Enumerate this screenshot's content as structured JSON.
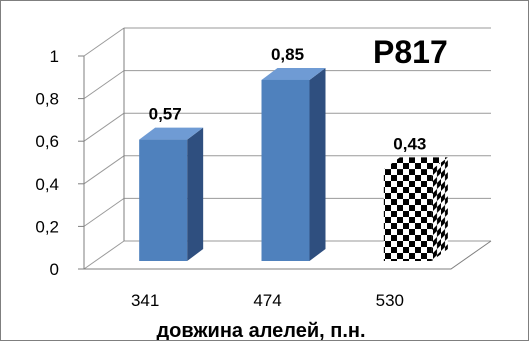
{
  "chart_data": {
    "type": "bar",
    "title": "P817",
    "xlabel": "довжина алелей, п.н.",
    "ylabel": "",
    "categories": [
      "341",
      "474",
      "530"
    ],
    "values": [
      0.57,
      0.85,
      0.43
    ],
    "data_labels": [
      "0,57",
      "0,85",
      "0,43"
    ],
    "ylim": [
      0,
      1
    ],
    "yticks": [
      0,
      0.2,
      0.4,
      0.6,
      0.8,
      1
    ],
    "ytick_labels": [
      "0",
      "0,2",
      "0,4",
      "0,6",
      "0,8",
      "1"
    ],
    "grid": true,
    "style": "3d-column",
    "bar_fills": [
      "solid",
      "solid",
      "checkerboard"
    ],
    "colors": {
      "bar_front": "#4f81bd",
      "bar_side": "#2f4f7f",
      "bar_top": "#6f9bd4",
      "checker_dark": "#000000",
      "checker_light": "#ffffff",
      "grid": "#9a9a9a",
      "axis": "#7f7f7f"
    }
  }
}
